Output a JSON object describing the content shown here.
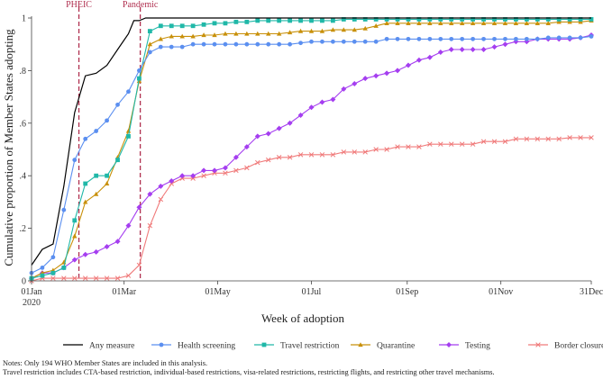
{
  "chart_data": {
    "type": "line",
    "title": "",
    "xlabel": "Week of adoption",
    "ylabel": "Cumulative proportion of Member States adopting",
    "ylim": [
      0,
      1
    ],
    "y_ticks": [
      0,
      0.2,
      0.4,
      0.6,
      0.8,
      1
    ],
    "y_tick_labels": [
      "0",
      ".2",
      ".4",
      ".6",
      ".8",
      "1"
    ],
    "x_ticks": [
      {
        "week": 0,
        "label": "01Jan",
        "label2": "2020"
      },
      {
        "week": 8.6,
        "label": "01Mar",
        "label2": ""
      },
      {
        "week": 17.3,
        "label": "01May",
        "label2": ""
      },
      {
        "week": 26,
        "label": "01Jul",
        "label2": ""
      },
      {
        "week": 34.9,
        "label": "01Sep",
        "label2": ""
      },
      {
        "week": 43.6,
        "label": "01Nov",
        "label2": ""
      },
      {
        "week": 52,
        "label": "31Dec",
        "label2": ""
      }
    ],
    "x_range": [
      0,
      52
    ],
    "grid": false,
    "legend_position": "bottom",
    "annotations": [
      {
        "week": 4.4,
        "label": "PHEIC",
        "color": "#b03050"
      },
      {
        "week": 10.1,
        "label": "Pandemic",
        "color": "#b03050"
      }
    ],
    "series": [
      {
        "name": "Any measure",
        "color": "#000000",
        "marker": "none",
        "x": [
          0,
          1,
          2,
          3,
          4,
          5,
          6,
          7,
          8,
          9,
          9.5,
          10,
          10.6,
          11,
          12,
          13,
          14,
          15,
          20,
          30,
          40,
          52
        ],
        "y": [
          0.06,
          0.12,
          0.14,
          0.36,
          0.64,
          0.78,
          0.79,
          0.82,
          0.88,
          0.94,
          0.99,
          0.99,
          1.0,
          1.0,
          1.0,
          1.0,
          1.0,
          1.0,
          1.0,
          1.0,
          1.0,
          1.0
        ]
      },
      {
        "name": "Health screening",
        "color": "#5b8ff0",
        "marker": "circle",
        "x": [
          0,
          1,
          2,
          3,
          4,
          5,
          6,
          7,
          8,
          9,
          10,
          11,
          12,
          13,
          14,
          15,
          16,
          17,
          18,
          19,
          20,
          21,
          22,
          23,
          24,
          25,
          26,
          27,
          28,
          29,
          30,
          31,
          32,
          33,
          34,
          35,
          36,
          37,
          38,
          39,
          40,
          41,
          42,
          43,
          44,
          45,
          46,
          47,
          48,
          49,
          50,
          51,
          52
        ],
        "y": [
          0.03,
          0.05,
          0.09,
          0.27,
          0.46,
          0.54,
          0.57,
          0.61,
          0.67,
          0.72,
          0.8,
          0.87,
          0.89,
          0.89,
          0.89,
          0.9,
          0.9,
          0.9,
          0.9,
          0.9,
          0.9,
          0.9,
          0.9,
          0.9,
          0.9,
          0.905,
          0.91,
          0.91,
          0.91,
          0.91,
          0.91,
          0.91,
          0.91,
          0.92,
          0.92,
          0.92,
          0.92,
          0.92,
          0.92,
          0.92,
          0.92,
          0.92,
          0.92,
          0.92,
          0.92,
          0.92,
          0.92,
          0.92,
          0.925,
          0.925,
          0.925,
          0.925,
          0.93
        ]
      },
      {
        "name": "Travel restriction",
        "color": "#20b8a8",
        "marker": "square",
        "x": [
          0,
          1,
          2,
          3,
          4,
          5,
          6,
          7,
          8,
          9,
          10,
          11,
          12,
          13,
          14,
          15,
          16,
          17,
          18,
          19,
          20,
          21,
          22,
          23,
          24,
          25,
          26,
          27,
          28,
          29,
          30,
          31,
          32,
          33,
          34,
          35,
          36,
          37,
          38,
          39,
          40,
          41,
          42,
          43,
          44,
          45,
          46,
          47,
          48,
          49,
          50,
          51,
          52
        ],
        "y": [
          0.01,
          0.02,
          0.03,
          0.05,
          0.23,
          0.37,
          0.4,
          0.4,
          0.46,
          0.55,
          0.77,
          0.95,
          0.97,
          0.97,
          0.97,
          0.97,
          0.975,
          0.98,
          0.98,
          0.985,
          0.985,
          0.99,
          0.99,
          0.99,
          0.99,
          0.99,
          0.99,
          0.99,
          0.99,
          0.995,
          0.995,
          0.995,
          0.995,
          0.995,
          0.995,
          0.995,
          0.995,
          0.995,
          0.995,
          0.995,
          0.995,
          0.995,
          0.995,
          0.995,
          0.995,
          0.995,
          0.995,
          0.995,
          0.995,
          0.995,
          0.995,
          0.995,
          0.995
        ]
      },
      {
        "name": "Quarantine",
        "color": "#c8900a",
        "marker": "triangle",
        "x": [
          0,
          1,
          2,
          3,
          4,
          5,
          6,
          7,
          8,
          9,
          10,
          11,
          12,
          13,
          14,
          15,
          16,
          17,
          18,
          19,
          20,
          21,
          22,
          23,
          24,
          25,
          26,
          27,
          28,
          29,
          30,
          31,
          32,
          33,
          34,
          35,
          36,
          37,
          38,
          39,
          40,
          41,
          42,
          43,
          44,
          45,
          46,
          47,
          48,
          49,
          50,
          51,
          52
        ],
        "y": [
          0.01,
          0.03,
          0.04,
          0.07,
          0.17,
          0.3,
          0.33,
          0.37,
          0.47,
          0.57,
          0.76,
          0.9,
          0.92,
          0.93,
          0.93,
          0.93,
          0.935,
          0.935,
          0.94,
          0.94,
          0.94,
          0.94,
          0.94,
          0.94,
          0.945,
          0.95,
          0.95,
          0.95,
          0.955,
          0.955,
          0.955,
          0.96,
          0.97,
          0.98,
          0.98,
          0.98,
          0.98,
          0.98,
          0.98,
          0.98,
          0.98,
          0.98,
          0.98,
          0.98,
          0.98,
          0.98,
          0.98,
          0.98,
          0.98,
          0.985,
          0.985,
          0.985,
          0.99
        ]
      },
      {
        "name": "Testing",
        "color": "#a53ef0",
        "marker": "diamond",
        "x": [
          0,
          1,
          2,
          3,
          4,
          5,
          6,
          7,
          8,
          9,
          10,
          11,
          12,
          13,
          14,
          15,
          16,
          17,
          18,
          19,
          20,
          21,
          22,
          23,
          24,
          25,
          26,
          27,
          28,
          29,
          30,
          31,
          32,
          33,
          34,
          35,
          36,
          37,
          38,
          39,
          40,
          41,
          42,
          43,
          44,
          45,
          46,
          47,
          48,
          49,
          50,
          51,
          52
        ],
        "y": [
          0.01,
          0.03,
          0.03,
          0.05,
          0.08,
          0.1,
          0.11,
          0.13,
          0.15,
          0.21,
          0.28,
          0.33,
          0.36,
          0.38,
          0.4,
          0.4,
          0.42,
          0.42,
          0.43,
          0.47,
          0.51,
          0.55,
          0.56,
          0.58,
          0.6,
          0.63,
          0.66,
          0.68,
          0.69,
          0.73,
          0.75,
          0.77,
          0.78,
          0.79,
          0.8,
          0.82,
          0.84,
          0.85,
          0.87,
          0.88,
          0.88,
          0.88,
          0.88,
          0.89,
          0.9,
          0.91,
          0.91,
          0.92,
          0.92,
          0.92,
          0.92,
          0.925,
          0.935
        ]
      },
      {
        "name": "Border closure",
        "color": "#f07a7a",
        "marker": "x",
        "x": [
          0,
          1,
          2,
          3,
          4,
          5,
          6,
          7,
          8,
          9,
          10,
          11,
          12,
          13,
          14,
          15,
          16,
          17,
          18,
          19,
          20,
          21,
          22,
          23,
          24,
          25,
          26,
          27,
          28,
          29,
          30,
          31,
          32,
          33,
          34,
          35,
          36,
          37,
          38,
          39,
          40,
          41,
          42,
          43,
          44,
          45,
          46,
          47,
          48,
          49,
          50,
          51,
          52
        ],
        "y": [
          0.0,
          0.01,
          0.01,
          0.01,
          0.01,
          0.01,
          0.01,
          0.01,
          0.01,
          0.02,
          0.06,
          0.21,
          0.31,
          0.37,
          0.39,
          0.39,
          0.4,
          0.41,
          0.41,
          0.42,
          0.43,
          0.45,
          0.46,
          0.47,
          0.47,
          0.48,
          0.48,
          0.48,
          0.48,
          0.49,
          0.49,
          0.49,
          0.5,
          0.5,
          0.51,
          0.51,
          0.51,
          0.52,
          0.52,
          0.52,
          0.52,
          0.52,
          0.53,
          0.53,
          0.53,
          0.54,
          0.54,
          0.54,
          0.54,
          0.54,
          0.545,
          0.545,
          0.545
        ]
      }
    ]
  },
  "notes": {
    "line1": "Notes: Only 194 WHO Member States are included in this analysis.",
    "line2": "Travel restriction includes CTA-based restriction, individual-based restrictions, visa-related restrictions, restricting flights, and restricting other travel mechanisms."
  }
}
